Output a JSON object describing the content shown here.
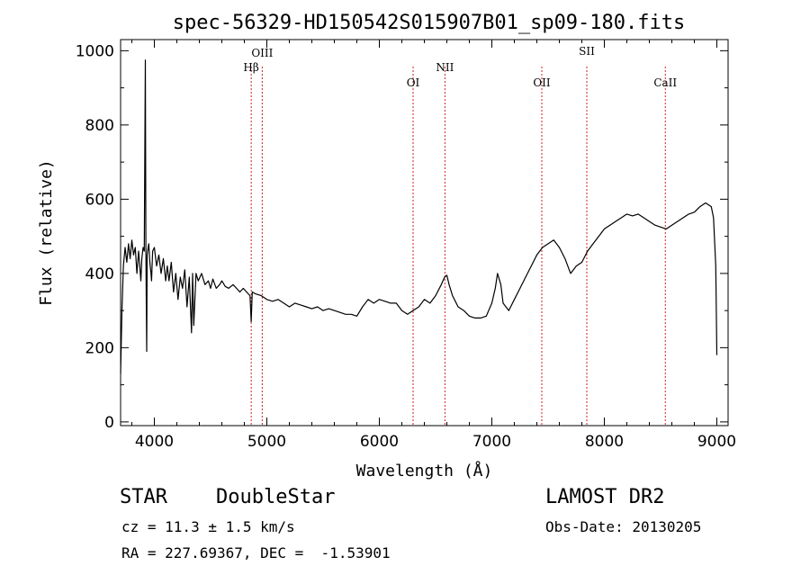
{
  "chart_data": {
    "type": "line",
    "title": "spec-56329-HD150542S015907B01_sp09-180.fits",
    "xlabel": "Wavelength (Å)",
    "ylabel": "Flux (relative)",
    "xlim": [
      3700,
      9100
    ],
    "ylim": [
      -10,
      1030
    ],
    "xticks": [
      4000,
      5000,
      6000,
      7000,
      8000,
      9000
    ],
    "yticks": [
      0,
      200,
      400,
      600,
      800,
      1000
    ],
    "grid": false,
    "series": [
      {
        "color": "#000000",
        "x": [
          3700,
          3712,
          3725,
          3740,
          3755,
          3770,
          3785,
          3800,
          3815,
          3830,
          3845,
          3860,
          3870,
          3880,
          3889,
          3900,
          3910,
          3920,
          3925,
          3932,
          3936,
          3940,
          3950,
          3960,
          3970,
          3975,
          3985,
          4000,
          4020,
          4040,
          4060,
          4080,
          4101,
          4115,
          4130,
          4150,
          4170,
          4190,
          4210,
          4230,
          4250,
          4270,
          4290,
          4310,
          4330,
          4340,
          4350,
          4370,
          4390,
          4420,
          4450,
          4480,
          4500,
          4520,
          4550,
          4580,
          4600,
          4630,
          4660,
          4700,
          4730,
          4760,
          4790,
          4820,
          4850,
          4861,
          4870,
          4900,
          4950,
          5000,
          5050,
          5100,
          5150,
          5200,
          5250,
          5300,
          5350,
          5400,
          5450,
          5500,
          5550,
          5600,
          5650,
          5700,
          5750,
          5800,
          5850,
          5900,
          5950,
          6000,
          6050,
          6100,
          6150,
          6200,
          6250,
          6300,
          6350,
          6400,
          6450,
          6500,
          6550,
          6580,
          6600,
          6620,
          6650,
          6700,
          6750,
          6800,
          6850,
          6900,
          6950,
          7000,
          7030,
          7050,
          7080,
          7100,
          7150,
          7200,
          7250,
          7300,
          7350,
          7400,
          7450,
          7500,
          7550,
          7600,
          7650,
          7700,
          7750,
          7800,
          7850,
          7900,
          7950,
          8000,
          8050,
          8100,
          8150,
          8200,
          8250,
          8300,
          8350,
          8400,
          8450,
          8500,
          8550,
          8600,
          8650,
          8700,
          8750,
          8800,
          8850,
          8900,
          8950,
          8970,
          8990,
          9000
        ],
        "y": [
          130,
          300,
          420,
          470,
          430,
          480,
          440,
          490,
          450,
          470,
          400,
          460,
          420,
          380,
          440,
          470,
          460,
          975,
          460,
          190,
          450,
          460,
          480,
          430,
          400,
          380,
          460,
          470,
          420,
          450,
          400,
          440,
          380,
          420,
          380,
          430,
          350,
          400,
          330,
          390,
          360,
          410,
          310,
          390,
          240,
          400,
          260,
          400,
          380,
          400,
          370,
          380,
          360,
          385,
          360,
          370,
          380,
          365,
          360,
          370,
          360,
          350,
          360,
          350,
          340,
          270,
          350,
          345,
          340,
          330,
          325,
          330,
          320,
          310,
          320,
          315,
          310,
          305,
          310,
          300,
          305,
          300,
          295,
          290,
          290,
          285,
          310,
          330,
          320,
          330,
          325,
          320,
          320,
          300,
          290,
          300,
          310,
          330,
          320,
          340,
          370,
          390,
          395,
          370,
          340,
          310,
          300,
          285,
          280,
          280,
          285,
          320,
          360,
          400,
          370,
          320,
          300,
          330,
          360,
          390,
          420,
          450,
          470,
          480,
          490,
          470,
          440,
          400,
          420,
          430,
          460,
          480,
          500,
          520,
          530,
          540,
          550,
          560,
          555,
          560,
          550,
          540,
          530,
          525,
          520,
          530,
          540,
          550,
          560,
          565,
          580,
          590,
          580,
          550,
          420,
          180
        ]
      }
    ],
    "annotations": [
      {
        "label": "Hβ",
        "x": 4861
      },
      {
        "label": "OIII",
        "x": 4959
      },
      {
        "label": "OI",
        "x": 6300
      },
      {
        "label": "NII",
        "x": 6583
      },
      {
        "label": "OII",
        "x": 7444
      },
      {
        "label": "SII",
        "x": 7844
      },
      {
        "label": "CaII",
        "x": 8542
      }
    ]
  },
  "footer": {
    "object_type": "STAR",
    "subclass": "DoubleStar",
    "survey": "LAMOST DR2",
    "cz": "cz = 11.3 ± 1.5 km/s",
    "obs_date": "Obs-Date: 20130205",
    "coords": "RA = 227.69367, DEC =  -1.53901"
  },
  "colors": {
    "axis": "#000000",
    "spectrum": "#000000",
    "line_marker": "#cc2222"
  }
}
